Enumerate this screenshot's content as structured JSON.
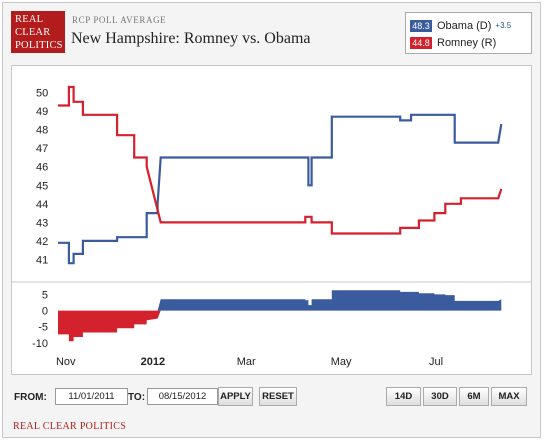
{
  "header": {
    "logo_lines": [
      "REAL",
      "CLEAR",
      "POLITICS"
    ],
    "supertitle": "RCP POLL AVERAGE",
    "title": "New Hampshire: Romney vs. Obama"
  },
  "legend": {
    "items": [
      {
        "value": "48.3",
        "label": "Obama (D)",
        "spread": "+3.5",
        "color": "#3a5b9e"
      },
      {
        "value": "44.8",
        "label": "Romney (R)",
        "spread": "",
        "color": "#d3212d"
      }
    ]
  },
  "controls": {
    "from_label": "FROM:",
    "from_value": "11/01/2011",
    "to_label": "TO:",
    "to_value": "08/15/2012",
    "apply_label": "APPLY",
    "reset_label": "RESET",
    "range_buttons": [
      "14D",
      "30D",
      "6M",
      "MAX"
    ]
  },
  "footer": {
    "link_text": "REAL CLEAR POLITICS"
  },
  "chart_data": {
    "type": "line",
    "x_axis": {
      "start": "2011-11-01",
      "end": "2012-08-15",
      "ticks": [
        {
          "date": "2011-11-06",
          "label": "Nov",
          "bold": false
        },
        {
          "date": "2012-01-01",
          "label": "2012",
          "bold": true
        },
        {
          "date": "2012-03-01",
          "label": "Mar",
          "bold": false
        },
        {
          "date": "2012-05-01",
          "label": "May",
          "bold": false
        },
        {
          "date": "2012-07-01",
          "label": "Jul",
          "bold": false
        }
      ]
    },
    "y_axis": {
      "ylim": [
        40,
        51
      ],
      "ticks": [
        41,
        42,
        43,
        44,
        45,
        46,
        47,
        48,
        49,
        50
      ]
    },
    "series": [
      {
        "name": "Obama (D)",
        "color": "#3a5b9e",
        "points": [
          [
            "2011-11-01",
            41.9
          ],
          [
            "2011-11-08",
            41.9
          ],
          [
            "2011-11-08",
            40.8
          ],
          [
            "2011-11-11",
            40.8
          ],
          [
            "2011-11-11",
            41.3
          ],
          [
            "2011-11-17",
            41.3
          ],
          [
            "2011-11-17",
            42.0
          ],
          [
            "2011-12-09",
            42.0
          ],
          [
            "2011-12-09",
            42.2
          ],
          [
            "2011-12-28",
            42.2
          ],
          [
            "2011-12-28",
            43.5
          ],
          [
            "2012-01-04",
            43.5
          ],
          [
            "2012-01-04",
            44.0
          ],
          [
            "2012-01-06",
            46.5
          ],
          [
            "2012-04-10",
            46.5
          ],
          [
            "2012-04-10",
            45.0
          ],
          [
            "2012-04-12",
            45.0
          ],
          [
            "2012-04-12",
            46.5
          ],
          [
            "2012-04-25",
            46.5
          ],
          [
            "2012-04-25",
            48.7
          ],
          [
            "2012-06-08",
            48.7
          ],
          [
            "2012-06-08",
            48.5
          ],
          [
            "2012-06-15",
            48.5
          ],
          [
            "2012-06-15",
            48.8
          ],
          [
            "2012-07-07",
            48.8
          ],
          [
            "2012-07-07",
            48.8
          ],
          [
            "2012-07-13",
            48.8
          ],
          [
            "2012-07-13",
            47.3
          ],
          [
            "2012-08-10",
            47.3
          ],
          [
            "2012-08-12",
            48.3
          ]
        ]
      },
      {
        "name": "Romney (R)",
        "color": "#d3212d",
        "points": [
          [
            "2011-11-01",
            49.3
          ],
          [
            "2011-11-08",
            49.3
          ],
          [
            "2011-11-08",
            50.3
          ],
          [
            "2011-11-11",
            50.3
          ],
          [
            "2011-11-11",
            49.5
          ],
          [
            "2011-11-17",
            49.5
          ],
          [
            "2011-11-17",
            48.8
          ],
          [
            "2011-12-09",
            48.8
          ],
          [
            "2011-12-09",
            47.7
          ],
          [
            "2011-12-20",
            47.7
          ],
          [
            "2011-12-20",
            46.5
          ],
          [
            "2011-12-28",
            46.5
          ],
          [
            "2011-12-28",
            46.0
          ],
          [
            "2012-01-06",
            43.0
          ],
          [
            "2012-04-08",
            43.0
          ],
          [
            "2012-04-08",
            43.3
          ],
          [
            "2012-04-12",
            43.3
          ],
          [
            "2012-04-12",
            43.0
          ],
          [
            "2012-04-25",
            43.0
          ],
          [
            "2012-04-25",
            42.4
          ],
          [
            "2012-06-08",
            42.4
          ],
          [
            "2012-06-08",
            42.7
          ],
          [
            "2012-06-20",
            42.7
          ],
          [
            "2012-06-20",
            43.1
          ],
          [
            "2012-06-30",
            43.1
          ],
          [
            "2012-06-30",
            43.5
          ],
          [
            "2012-07-07",
            43.5
          ],
          [
            "2012-07-07",
            44.0
          ],
          [
            "2012-07-17",
            44.0
          ],
          [
            "2012-07-17",
            44.3
          ],
          [
            "2012-08-10",
            44.3
          ],
          [
            "2012-08-12",
            44.8
          ]
        ]
      }
    ],
    "spread_panel": {
      "ylim": [
        -11,
        7
      ],
      "ticks": [
        5,
        0,
        -5,
        -10
      ],
      "positive_color": "#3a5b9e",
      "negative_color": "#d3212d",
      "series": [
        [
          "2011-11-01",
          -7.4
        ],
        [
          "2011-11-08",
          -7.4
        ],
        [
          "2011-11-08",
          -9.5
        ],
        [
          "2011-11-11",
          -9.5
        ],
        [
          "2011-11-11",
          -8.2
        ],
        [
          "2011-11-17",
          -8.2
        ],
        [
          "2011-11-17",
          -6.8
        ],
        [
          "2011-12-09",
          -6.8
        ],
        [
          "2011-12-09",
          -5.5
        ],
        [
          "2011-12-20",
          -5.5
        ],
        [
          "2011-12-20",
          -4.3
        ],
        [
          "2011-12-28",
          -4.3
        ],
        [
          "2011-12-28",
          -3.0
        ],
        [
          "2012-01-04",
          -2.5
        ],
        [
          "2012-01-06",
          3.5
        ],
        [
          "2012-04-08",
          3.5
        ],
        [
          "2012-04-08",
          3.2
        ],
        [
          "2012-04-10",
          3.2
        ],
        [
          "2012-04-10",
          1.7
        ],
        [
          "2012-04-12",
          1.7
        ],
        [
          "2012-04-12",
          3.5
        ],
        [
          "2012-04-25",
          3.5
        ],
        [
          "2012-04-25",
          6.3
        ],
        [
          "2012-06-08",
          6.3
        ],
        [
          "2012-06-08",
          5.8
        ],
        [
          "2012-06-20",
          5.8
        ],
        [
          "2012-06-20",
          5.4
        ],
        [
          "2012-06-30",
          5.4
        ],
        [
          "2012-06-30",
          5.0
        ],
        [
          "2012-07-07",
          5.0
        ],
        [
          "2012-07-07",
          4.8
        ],
        [
          "2012-07-13",
          4.8
        ],
        [
          "2012-07-13",
          3.0
        ],
        [
          "2012-08-10",
          3.0
        ],
        [
          "2012-08-12",
          3.5
        ]
      ]
    }
  }
}
